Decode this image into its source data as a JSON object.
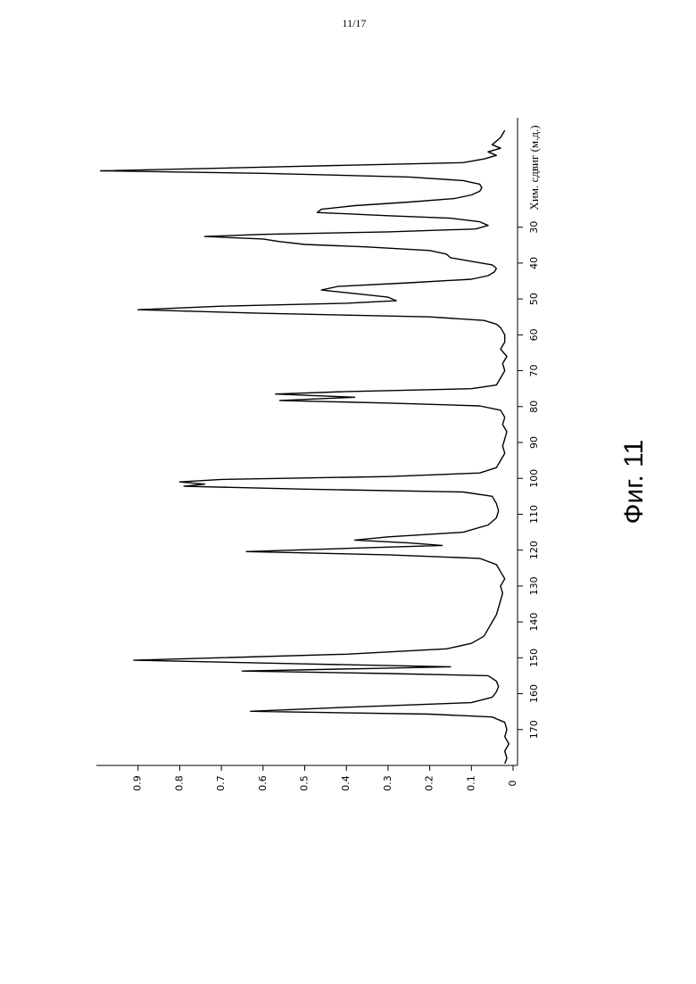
{
  "page_number": "11/17",
  "figure_label": "Фиг. 11",
  "chart_data": {
    "type": "line",
    "x_label": "Хим. сдвиг (м.д.)",
    "color": "#000000",
    "xlim": [
      0,
      180
    ],
    "xticks": [
      30,
      40,
      50,
      60,
      70,
      80,
      90,
      100,
      110,
      120,
      130,
      140,
      150,
      160,
      170
    ],
    "ylim": [
      0,
      1
    ],
    "yticks": [
      0,
      0.1,
      0.2,
      0.3,
      0.4,
      0.5,
      0.6,
      0.7,
      0.8,
      0.9
    ],
    "x": [
      3,
      5,
      7,
      8,
      9,
      10,
      11,
      12,
      13,
      14.3,
      15,
      16,
      17,
      18,
      19,
      20,
      21,
      22,
      23,
      24,
      25,
      25.9,
      26.8,
      27.5,
      28.5,
      29.5,
      30.5,
      31.3,
      32,
      32.6,
      33.3,
      34,
      34.8,
      35.5,
      36.5,
      37.5,
      38.5,
      39.5,
      40.5,
      41.5,
      42.5,
      43.5,
      44.5,
      45.5,
      46.5,
      47.5,
      48.5,
      49.5,
      50.5,
      51.2,
      52,
      53,
      54,
      55,
      56,
      57,
      58,
      60,
      62,
      64,
      66,
      68,
      70,
      72,
      74,
      75,
      75.8,
      76.5,
      77.4,
      78.3,
      79,
      79.8,
      81,
      83,
      85,
      87,
      89,
      91,
      93,
      95,
      97,
      98.5,
      99.5,
      100.3,
      101,
      101.6,
      102.2,
      103,
      103.8,
      105,
      107,
      109,
      111,
      113,
      115,
      116.3,
      117.2,
      118,
      118.7,
      119.5,
      120.4,
      121.3,
      122.3,
      124,
      126,
      128,
      130,
      132,
      134,
      136,
      138,
      140,
      142,
      144,
      146,
      147.5,
      149,
      150.7,
      151.7,
      152.5,
      153,
      153.7,
      154.4,
      155,
      156.5,
      158,
      159.5,
      161,
      162.5,
      163.8,
      164.9,
      165.7,
      166.5,
      168,
      170,
      172,
      174,
      176,
      178,
      179.5
    ],
    "values": [
      0.02,
      0.03,
      0.05,
      0.03,
      0.06,
      0.04,
      0.07,
      0.12,
      0.5,
      0.99,
      0.6,
      0.25,
      0.12,
      0.08,
      0.075,
      0.08,
      0.1,
      0.14,
      0.25,
      0.38,
      0.46,
      0.47,
      0.3,
      0.15,
      0.08,
      0.06,
      0.09,
      0.3,
      0.6,
      0.74,
      0.6,
      0.56,
      0.5,
      0.35,
      0.2,
      0.16,
      0.15,
      0.1,
      0.05,
      0.04,
      0.045,
      0.06,
      0.1,
      0.25,
      0.42,
      0.46,
      0.38,
      0.3,
      0.28,
      0.4,
      0.7,
      0.9,
      0.6,
      0.2,
      0.07,
      0.04,
      0.03,
      0.02,
      0.02,
      0.03,
      0.015,
      0.025,
      0.02,
      0.03,
      0.04,
      0.1,
      0.4,
      0.57,
      0.38,
      0.56,
      0.3,
      0.08,
      0.03,
      0.02,
      0.025,
      0.015,
      0.02,
      0.025,
      0.02,
      0.03,
      0.04,
      0.08,
      0.3,
      0.7,
      0.8,
      0.74,
      0.79,
      0.5,
      0.12,
      0.05,
      0.04,
      0.035,
      0.04,
      0.06,
      0.12,
      0.3,
      0.38,
      0.25,
      0.17,
      0.4,
      0.64,
      0.3,
      0.08,
      0.04,
      0.03,
      0.02,
      0.03,
      0.025,
      0.03,
      0.035,
      0.04,
      0.05,
      0.06,
      0.07,
      0.1,
      0.16,
      0.4,
      0.91,
      0.5,
      0.15,
      0.35,
      0.65,
      0.3,
      0.06,
      0.04,
      0.035,
      0.04,
      0.05,
      0.1,
      0.4,
      0.63,
      0.2,
      0.05,
      0.02,
      0.015,
      0.02,
      0.01,
      0.02,
      0.015,
      0.02
    ]
  }
}
